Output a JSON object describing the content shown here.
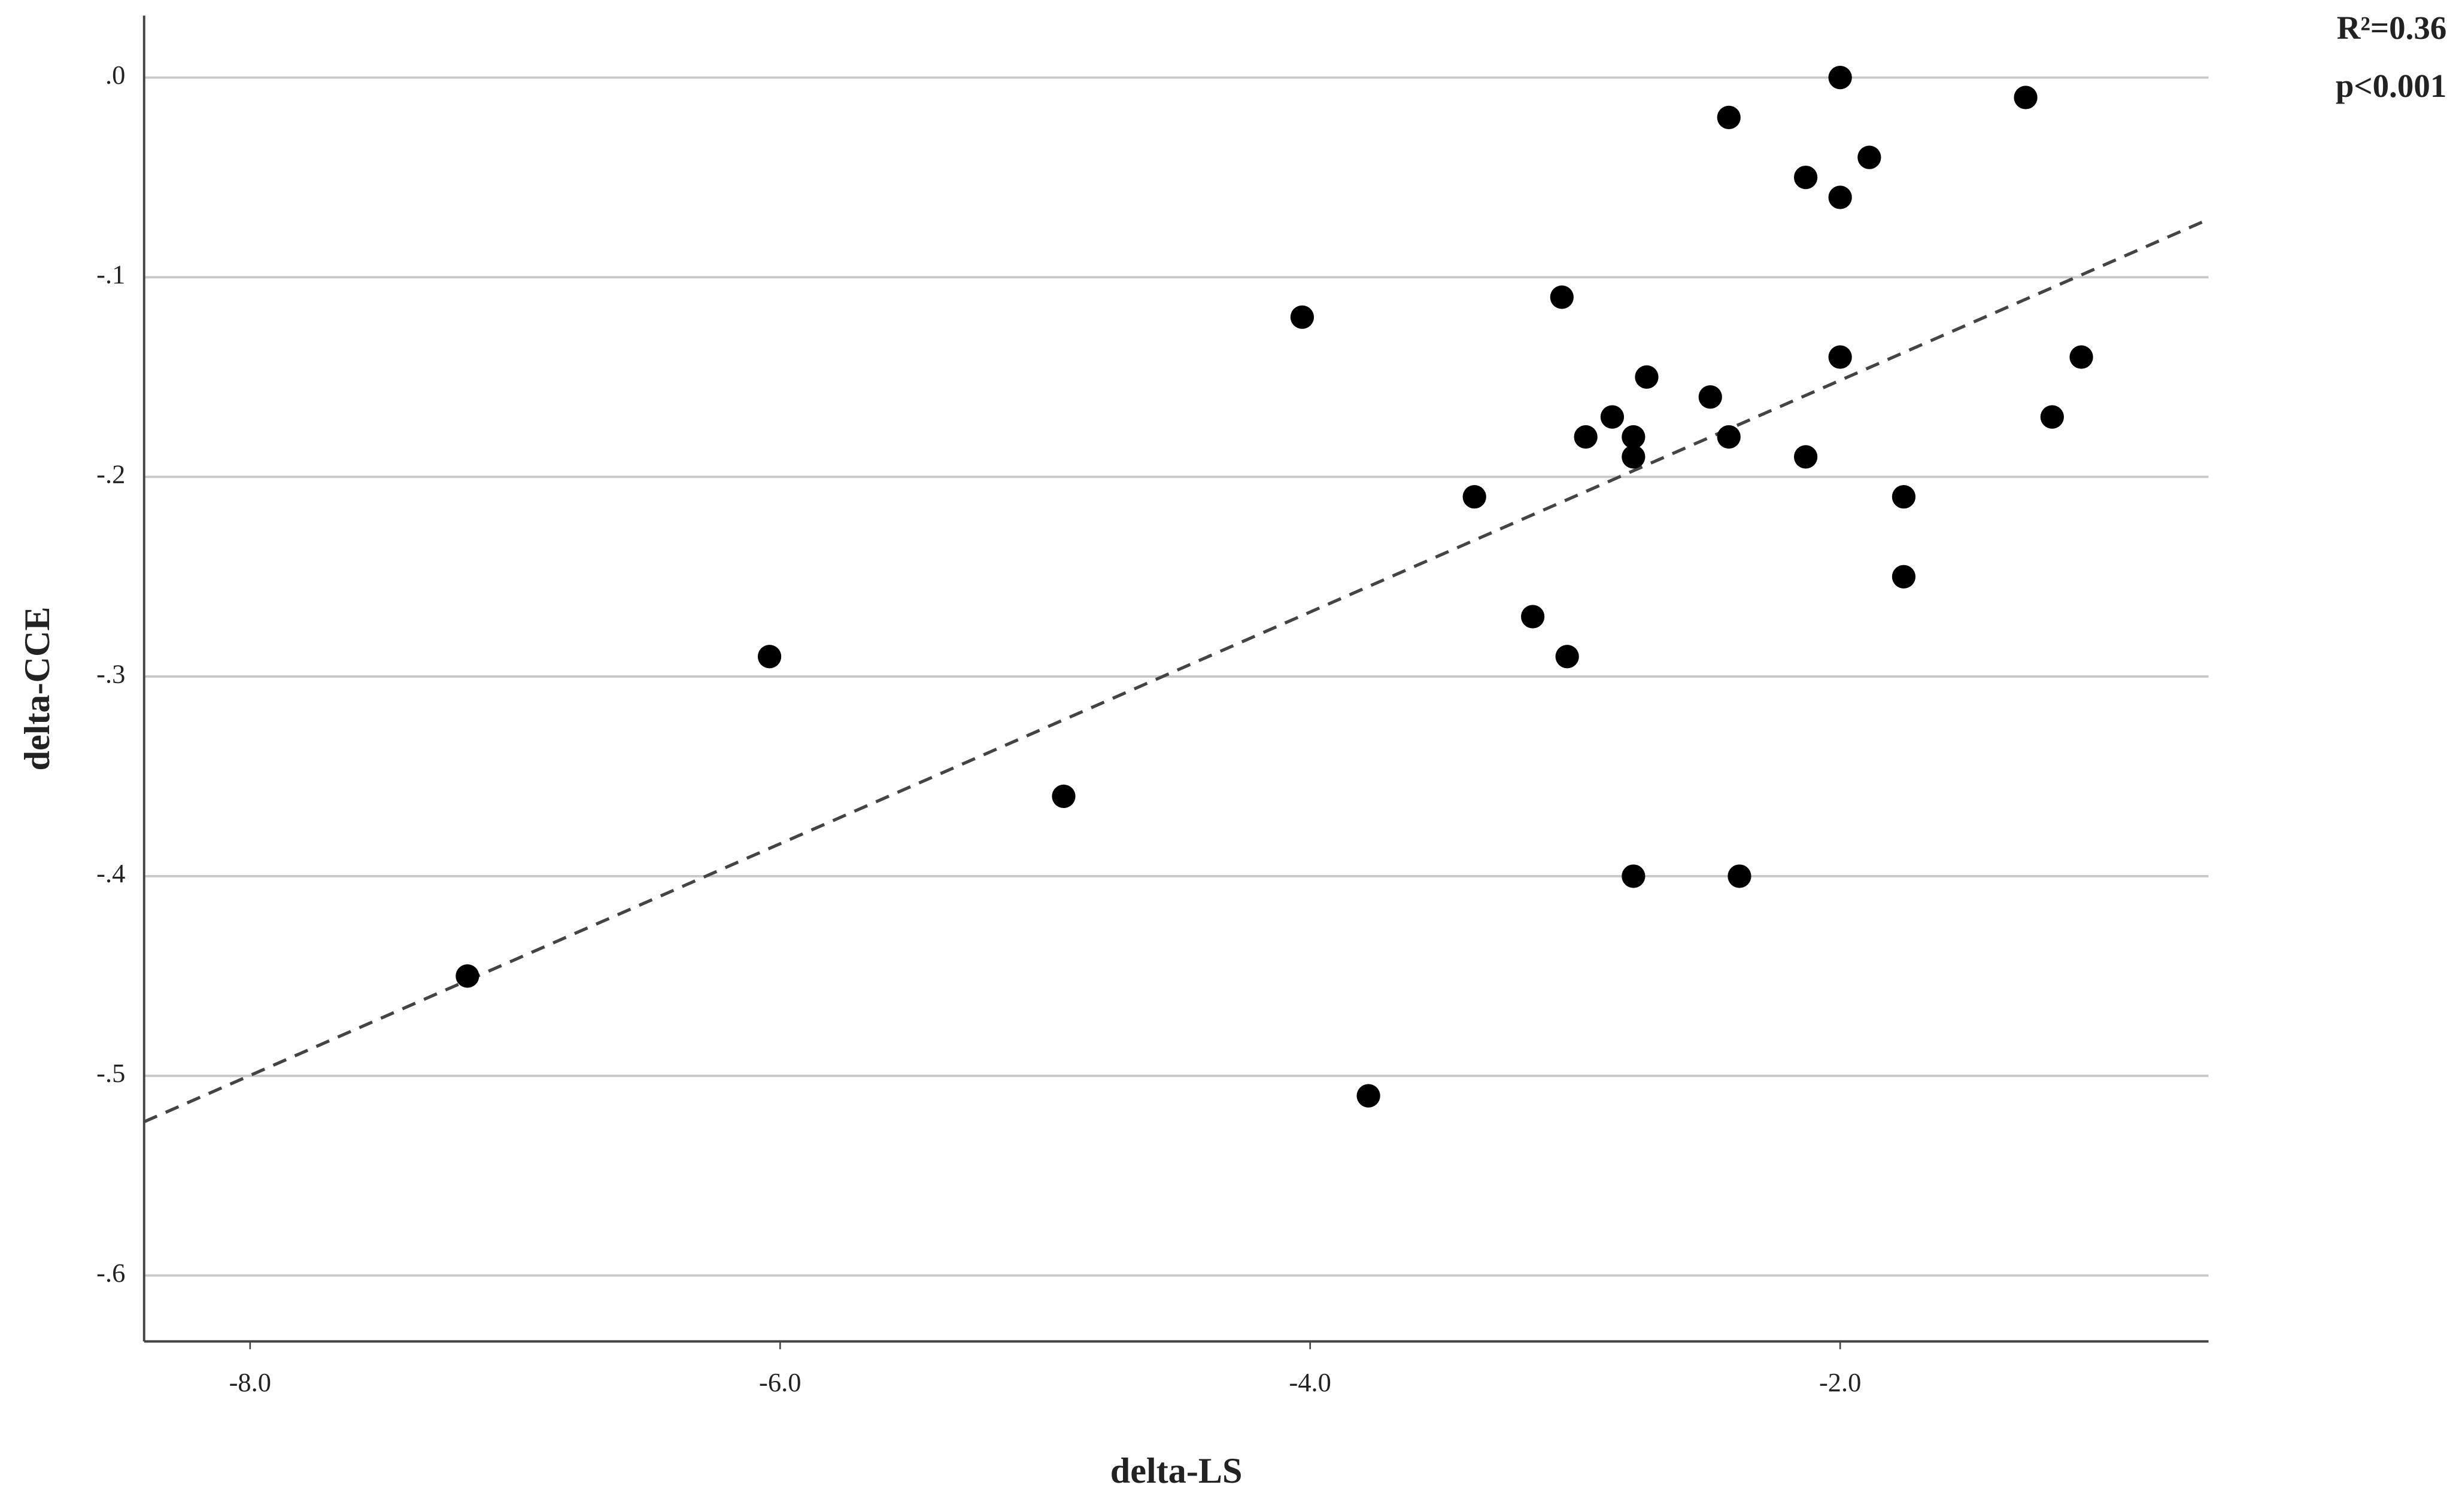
{
  "chart_data": {
    "type": "scatter",
    "x_label": "delta-LS",
    "y_label": "delta-CCE",
    "annotations": [
      "R²=0.36",
      "p<0.001"
    ],
    "color": "#000000",
    "grid": true,
    "xlim": [
      -8.4,
      -0.61
    ],
    "ylim": [
      -0.633,
      0.031
    ],
    "xticks": [
      {
        "value": -8,
        "label": "-8.0"
      },
      {
        "value": -6,
        "label": "-6.0"
      },
      {
        "value": -4,
        "label": "-4.0"
      },
      {
        "value": -2,
        "label": "-2.0"
      }
    ],
    "yticks": [
      {
        "value": 0,
        "label": ".0"
      },
      {
        "value": -0.1,
        "label": "-.1"
      },
      {
        "value": -0.2,
        "label": "-.2"
      },
      {
        "value": -0.3,
        "label": "-.3"
      },
      {
        "value": -0.4,
        "label": "-.4"
      },
      {
        "value": -0.5,
        "label": "-.5"
      },
      {
        "value": -0.6,
        "label": "-.6"
      }
    ],
    "x": [
      -2.0,
      -1.3,
      -2.42,
      -1.89,
      -2.13,
      -2.0,
      -3.05,
      -4.03,
      -2.0,
      -1.09,
      -2.73,
      -2.49,
      -2.86,
      -1.2,
      -2.96,
      -2.78,
      -2.42,
      -2.78,
      -2.13,
      -3.38,
      -1.76,
      -1.76,
      -3.16,
      -3.03,
      -6.04,
      -4.93,
      -2.78,
      -2.38,
      -7.18,
      -3.78
    ],
    "y": [
      0.0,
      -0.01,
      -0.02,
      -0.04,
      -0.05,
      -0.06,
      -0.11,
      -0.12,
      -0.14,
      -0.14,
      -0.15,
      -0.16,
      -0.17,
      -0.17,
      -0.18,
      -0.18,
      -0.18,
      -0.19,
      -0.19,
      -0.21,
      -0.21,
      -0.25,
      -0.27,
      -0.29,
      -0.29,
      -0.36,
      -0.4,
      -0.4,
      -0.45,
      -0.51
    ],
    "trendline": {
      "x": [
        -8.4,
        -0.61
      ],
      "y": [
        -0.523,
        -0.071
      ],
      "color": "#444444"
    }
  }
}
